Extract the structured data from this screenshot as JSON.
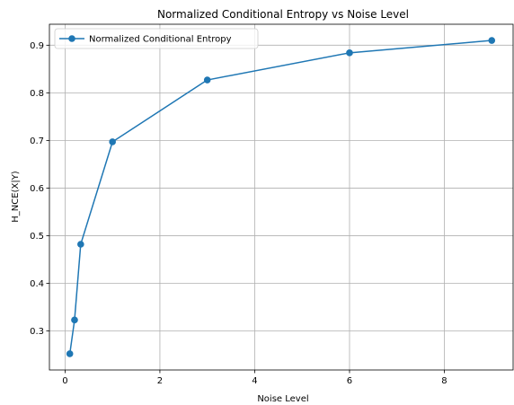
{
  "chart_data": {
    "type": "line",
    "title": "Normalized Conditional Entropy vs Noise Level",
    "xlabel": "Noise Level",
    "ylabel": "H_NCE(X|Y)",
    "xlim": [
      -0.33,
      9.45
    ],
    "ylim": [
      0.218,
      0.944
    ],
    "xticks": [
      0,
      2,
      4,
      6,
      8
    ],
    "yticks": [
      0.3,
      0.4,
      0.5,
      0.6,
      0.7,
      0.8,
      0.9
    ],
    "grid": true,
    "legend_position": "upper-left",
    "series": [
      {
        "name": "Normalized Conditional Entropy",
        "color": "#1f77b4",
        "marker": "circle",
        "x": [
          0.1,
          0.2,
          0.33,
          1,
          3,
          6,
          9
        ],
        "y": [
          0.252,
          0.323,
          0.482,
          0.697,
          0.827,
          0.884,
          0.91
        ]
      }
    ]
  }
}
